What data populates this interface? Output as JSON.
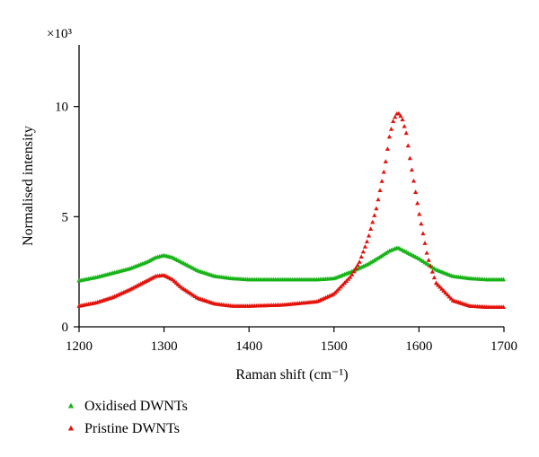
{
  "chart_data": {
    "type": "scatter",
    "xlabel": "Raman shift (cm⁻¹)",
    "ylabel": "Normalised intensity",
    "y_multiplier_label": "×10³",
    "xlim": [
      1200,
      1700
    ],
    "ylim": [
      0,
      12.8
    ],
    "x_ticks": [
      1200,
      1300,
      1400,
      1500,
      1600,
      1700
    ],
    "x_tick_labels": [
      "1200",
      "1300",
      "1400",
      "1500",
      "1600",
      "1700"
    ],
    "y_ticks": [
      0,
      5,
      10
    ],
    "y_tick_labels": [
      "0",
      "5",
      "10"
    ],
    "grid": false,
    "legend_position": "bottom-left",
    "series": [
      {
        "name": "Oxidised DWNTs",
        "color": "#17b317",
        "marker": "triangle",
        "x": [
          1200,
          1220,
          1240,
          1260,
          1280,
          1290,
          1300,
          1310,
          1320,
          1340,
          1360,
          1380,
          1400,
          1440,
          1480,
          1500,
          1520,
          1540,
          1555,
          1565,
          1575,
          1585,
          1600,
          1620,
          1640,
          1660,
          1680,
          1700
        ],
        "y": [
          2.1,
          2.25,
          2.45,
          2.65,
          2.95,
          3.15,
          3.25,
          3.15,
          2.95,
          2.55,
          2.3,
          2.2,
          2.15,
          2.15,
          2.15,
          2.2,
          2.5,
          2.85,
          3.2,
          3.45,
          3.6,
          3.4,
          3.1,
          2.6,
          2.3,
          2.2,
          2.15,
          2.15
        ]
      },
      {
        "name": "Pristine DWNTs",
        "color": "#e3120b",
        "marker": "triangle",
        "x": [
          1200,
          1220,
          1240,
          1260,
          1280,
          1290,
          1300,
          1310,
          1320,
          1340,
          1360,
          1380,
          1400,
          1440,
          1480,
          1500,
          1520,
          1530,
          1540,
          1550,
          1560,
          1565,
          1570,
          1575,
          1580,
          1585,
          1590,
          1600,
          1610,
          1620,
          1640,
          1660,
          1680,
          1700
        ],
        "y": [
          0.95,
          1.1,
          1.35,
          1.7,
          2.1,
          2.3,
          2.35,
          2.15,
          1.8,
          1.3,
          1.05,
          0.95,
          0.95,
          1.0,
          1.15,
          1.5,
          2.3,
          2.95,
          4.0,
          5.4,
          7.3,
          8.6,
          9.4,
          9.75,
          9.5,
          8.8,
          7.5,
          5.2,
          3.2,
          2.0,
          1.2,
          0.95,
          0.9,
          0.9
        ]
      }
    ]
  }
}
